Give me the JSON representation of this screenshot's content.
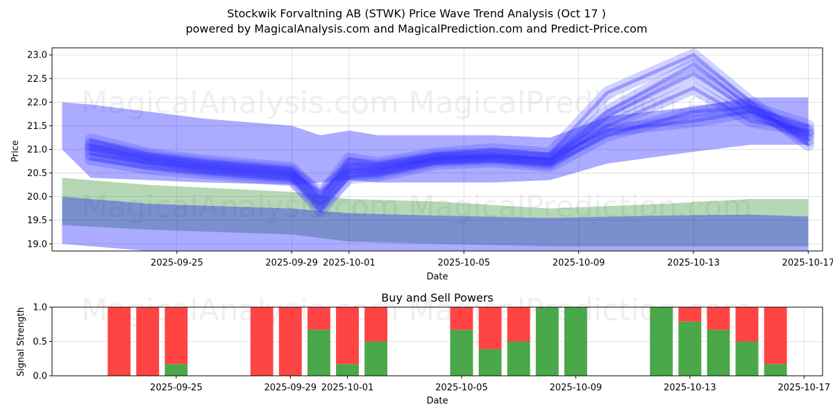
{
  "chart_data": [
    {
      "type": "area",
      "title_line1": "Stockwik Forvaltning AB (STWK) Price Wave Trend Analysis (Oct 17 )",
      "title_line2": "powered by MagicalAnalysis.com and MagicalPrediction.com and Predict-Price.com",
      "xlabel": "Date",
      "ylabel": "Price",
      "ylim": [
        18.85,
        23.15
      ],
      "x_range": [
        "2025-09-21",
        "2025-10-18"
      ],
      "x_ticks": [
        "2025-09-25",
        "2025-09-29",
        "2025-10-01",
        "2025-10-05",
        "2025-10-09",
        "2025-10-13",
        "2025-10-17"
      ],
      "y_ticks": [
        19.0,
        19.5,
        20.0,
        20.5,
        21.0,
        21.5,
        22.0,
        22.5,
        23.0
      ],
      "y_tick_labels": [
        "19.0",
        "19.5",
        "20.0",
        "20.5",
        "21.0",
        "21.5",
        "22.0",
        "22.5",
        "23.0"
      ],
      "watermarks": [
        "MagicalAnalysis.com",
        "MagicalPrediction.com"
      ],
      "bands": [
        {
          "name": "upper-wave-envelope",
          "color": "#0000ff",
          "opacity": 0.33,
          "x": [
            "2025-09-21",
            "2025-09-22",
            "2025-09-24",
            "2025-09-26",
            "2025-09-29",
            "2025-09-30",
            "2025-10-01",
            "2025-10-02",
            "2025-10-04",
            "2025-10-06",
            "2025-10-08",
            "2025-10-10",
            "2025-10-13",
            "2025-10-15",
            "2025-10-17"
          ],
          "upper": [
            22.0,
            21.95,
            21.8,
            21.65,
            21.5,
            21.3,
            21.4,
            21.3,
            21.3,
            21.3,
            21.25,
            21.7,
            21.9,
            22.1,
            22.1
          ],
          "lower": [
            21.0,
            20.4,
            20.35,
            20.3,
            20.25,
            20.3,
            20.35,
            20.3,
            20.3,
            20.3,
            20.35,
            20.7,
            20.95,
            21.1,
            21.1
          ]
        },
        {
          "name": "lower-green-band",
          "color": "#2e8b2e",
          "opacity": 0.35,
          "x": [
            "2025-09-21",
            "2025-09-24",
            "2025-09-29",
            "2025-10-01",
            "2025-10-04",
            "2025-10-08",
            "2025-10-12",
            "2025-10-15",
            "2025-10-17"
          ],
          "upper": [
            20.4,
            20.25,
            20.1,
            19.95,
            19.9,
            19.75,
            19.85,
            19.95,
            19.95
          ],
          "lower": [
            19.4,
            19.3,
            19.2,
            19.05,
            19.0,
            18.95,
            18.95,
            18.95,
            18.95
          ]
        },
        {
          "name": "lower-blue-band",
          "color": "#0000ff",
          "opacity": 0.33,
          "x": [
            "2025-09-21",
            "2025-09-24",
            "2025-09-29",
            "2025-10-01",
            "2025-10-04",
            "2025-10-08",
            "2025-10-12",
            "2025-10-15",
            "2025-10-17"
          ],
          "upper": [
            20.0,
            19.85,
            19.75,
            19.65,
            19.6,
            19.55,
            19.6,
            19.62,
            19.58
          ],
          "lower": [
            19.0,
            18.85,
            18.85,
            18.85,
            18.85,
            18.85,
            18.85,
            18.85,
            18.85
          ]
        }
      ],
      "wave_paths": {
        "color": "#3030ff",
        "x": [
          "2025-09-22",
          "2025-09-24",
          "2025-09-26",
          "2025-09-29",
          "2025-09-30",
          "2025-10-01",
          "2025-10-02",
          "2025-10-04",
          "2025-10-06",
          "2025-10-08",
          "2025-10-10",
          "2025-10-13",
          "2025-10-15",
          "2025-10-17"
        ],
        "lines": [
          [
            21.1,
            20.85,
            20.7,
            20.55,
            19.95,
            20.7,
            20.65,
            20.85,
            20.9,
            20.8,
            21.8,
            22.8,
            21.9,
            21.2
          ],
          [
            21.0,
            20.75,
            20.6,
            20.45,
            19.85,
            20.55,
            20.55,
            20.8,
            20.85,
            20.75,
            21.7,
            22.6,
            21.8,
            21.3
          ],
          [
            20.9,
            20.7,
            20.55,
            20.4,
            19.7,
            20.45,
            20.5,
            20.75,
            20.8,
            20.7,
            21.5,
            22.3,
            21.6,
            21.4
          ],
          [
            21.2,
            20.9,
            20.75,
            20.6,
            20.0,
            20.8,
            20.7,
            20.9,
            21.0,
            20.9,
            22.2,
            23.0,
            22.0,
            21.1
          ],
          [
            20.8,
            20.6,
            20.5,
            20.35,
            19.8,
            20.4,
            20.45,
            20.7,
            20.75,
            20.65,
            21.3,
            21.8,
            21.9,
            21.5
          ],
          [
            21.05,
            20.8,
            20.65,
            20.5,
            20.1,
            20.6,
            20.6,
            20.8,
            20.85,
            20.8,
            21.4,
            21.6,
            21.8,
            21.35
          ]
        ]
      }
    },
    {
      "type": "bar",
      "title": "Buy and Sell Powers",
      "xlabel": "Date",
      "ylabel": "Signal Strength",
      "ylim": [
        0,
        1.0
      ],
      "y_ticks": [
        0.0,
        0.5,
        1.0
      ],
      "y_tick_labels": [
        "0.0",
        "0.5",
        "1.0"
      ],
      "x_ticks": [
        "2025-09-25",
        "2025-09-29",
        "2025-10-01",
        "2025-10-05",
        "2025-10-09",
        "2025-10-13",
        "2025-10-17"
      ],
      "buy_color": "#4aa84a",
      "sell_color": "#ff4444",
      "dates": [
        "2025-09-23",
        "2025-09-24",
        "2025-09-25",
        "2025-09-28",
        "2025-09-29",
        "2025-09-30",
        "2025-10-01",
        "2025-10-02",
        "2025-10-05",
        "2025-10-06",
        "2025-10-07",
        "2025-10-08",
        "2025-10-09",
        "2025-10-12",
        "2025-10-13",
        "2025-10-14",
        "2025-10-15",
        "2025-10-16"
      ],
      "buy": [
        0.0,
        0.0,
        0.17,
        0.0,
        0.0,
        0.67,
        0.17,
        0.5,
        0.67,
        0.39,
        0.5,
        1.0,
        1.0,
        1.0,
        0.79,
        0.67,
        0.5,
        0.17
      ]
    }
  ]
}
